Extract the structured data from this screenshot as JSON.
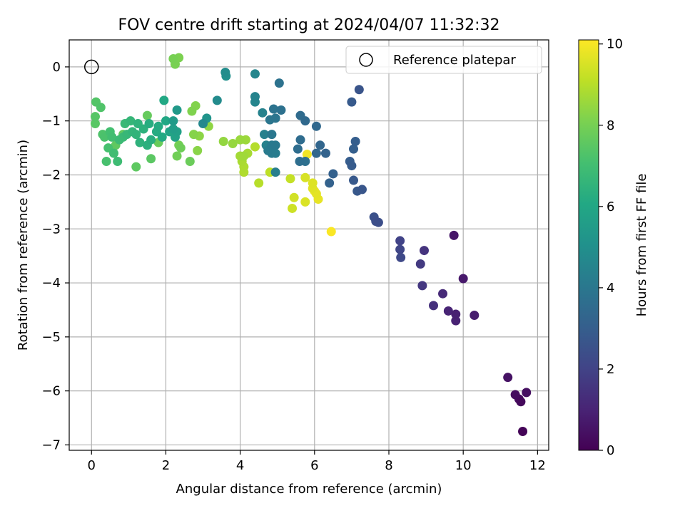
{
  "chart_data": {
    "type": "scatter",
    "title": "FOV centre drift starting at 2024/04/07 11:32:32",
    "xlabel": "Angular distance from reference (arcmin)",
    "ylabel": "Rotation from reference (arcmin)",
    "xlim": [
      -0.6,
      12.3
    ],
    "ylim": [
      -7.1,
      0.5
    ],
    "xticks": [
      0,
      2,
      4,
      6,
      8,
      10,
      12
    ],
    "yticks": [
      0,
      -1,
      -2,
      -3,
      -4,
      -5,
      -6,
      -7
    ],
    "grid": true,
    "legend": {
      "label": "Reference platepar",
      "location": "top-right"
    },
    "reference_point": {
      "x": 0,
      "y": 0
    },
    "colorbar": {
      "label": "Hours from first FF file",
      "range": [
        0,
        10.1
      ],
      "ticks": [
        0,
        2,
        4,
        6,
        8,
        10
      ],
      "colormap": "viridis"
    },
    "points": [
      {
        "x": 11.6,
        "y": -6.75,
        "h": 0.1
      },
      {
        "x": 11.55,
        "y": -6.2,
        "h": 0.2
      },
      {
        "x": 11.5,
        "y": -6.15,
        "h": 0.3
      },
      {
        "x": 11.4,
        "y": -6.07,
        "h": 0.35
      },
      {
        "x": 11.7,
        "y": -6.03,
        "h": 0.4
      },
      {
        "x": 11.2,
        "y": -5.75,
        "h": 0.5
      },
      {
        "x": 10.3,
        "y": -4.6,
        "h": 0.8
      },
      {
        "x": 9.8,
        "y": -4.58,
        "h": 0.9
      },
      {
        "x": 9.6,
        "y": -4.52,
        "h": 1.0
      },
      {
        "x": 9.8,
        "y": -4.7,
        "h": 0.95
      },
      {
        "x": 10.0,
        "y": -3.92,
        "h": 0.7
      },
      {
        "x": 9.75,
        "y": -3.12,
        "h": 0.6
      },
      {
        "x": 9.45,
        "y": -4.2,
        "h": 1.2
      },
      {
        "x": 9.2,
        "y": -4.42,
        "h": 1.4
      },
      {
        "x": 8.9,
        "y": -4.05,
        "h": 1.6
      },
      {
        "x": 8.95,
        "y": -3.4,
        "h": 1.5
      },
      {
        "x": 8.85,
        "y": -3.65,
        "h": 1.7
      },
      {
        "x": 8.3,
        "y": -3.22,
        "h": 2.0
      },
      {
        "x": 8.3,
        "y": -3.38,
        "h": 2.1
      },
      {
        "x": 8.32,
        "y": -3.53,
        "h": 2.2
      },
      {
        "x": 7.72,
        "y": -2.88,
        "h": 2.4
      },
      {
        "x": 7.6,
        "y": -2.78,
        "h": 2.5
      },
      {
        "x": 7.65,
        "y": -2.86,
        "h": 2.45
      },
      {
        "x": 7.28,
        "y": -2.27,
        "h": 2.7
      },
      {
        "x": 7.15,
        "y": -2.3,
        "h": 2.75
      },
      {
        "x": 7.05,
        "y": -2.1,
        "h": 2.8
      },
      {
        "x": 7.0,
        "y": -1.83,
        "h": 2.9
      },
      {
        "x": 6.95,
        "y": -1.75,
        "h": 2.95
      },
      {
        "x": 7.1,
        "y": -1.38,
        "h": 3.0
      },
      {
        "x": 7.05,
        "y": -1.52,
        "h": 3.05
      },
      {
        "x": 7.0,
        "y": -0.65,
        "h": 2.85
      },
      {
        "x": 7.2,
        "y": -0.42,
        "h": 2.6
      },
      {
        "x": 6.5,
        "y": -1.98,
        "h": 3.1
      },
      {
        "x": 6.4,
        "y": -2.15,
        "h": 3.15
      },
      {
        "x": 6.3,
        "y": -1.6,
        "h": 3.2
      },
      {
        "x": 6.15,
        "y": -1.45,
        "h": 3.3
      },
      {
        "x": 6.05,
        "y": -1.6,
        "h": 3.35
      },
      {
        "x": 6.05,
        "y": -1.1,
        "h": 3.4
      },
      {
        "x": 5.75,
        "y": -1.0,
        "h": 3.45
      },
      {
        "x": 5.62,
        "y": -0.9,
        "h": 3.5
      },
      {
        "x": 5.62,
        "y": -1.35,
        "h": 3.55
      },
      {
        "x": 5.55,
        "y": -1.52,
        "h": 3.6
      },
      {
        "x": 5.6,
        "y": -1.75,
        "h": 3.65
      },
      {
        "x": 5.75,
        "y": -1.75,
        "h": 3.7
      },
      {
        "x": 5.1,
        "y": -0.8,
        "h": 3.75
      },
      {
        "x": 5.05,
        "y": -0.3,
        "h": 3.8
      },
      {
        "x": 4.9,
        "y": -0.78,
        "h": 3.85
      },
      {
        "x": 4.95,
        "y": -0.95,
        "h": 3.9
      },
      {
        "x": 4.8,
        "y": -0.98,
        "h": 3.95
      },
      {
        "x": 4.85,
        "y": -1.25,
        "h": 4.0
      },
      {
        "x": 4.95,
        "y": -1.45,
        "h": 4.05
      },
      {
        "x": 4.85,
        "y": -1.45,
        "h": 4.1
      },
      {
        "x": 4.75,
        "y": -1.55,
        "h": 4.15
      },
      {
        "x": 4.85,
        "y": -1.6,
        "h": 4.2
      },
      {
        "x": 4.95,
        "y": -1.6,
        "h": 4.25
      },
      {
        "x": 4.95,
        "y": -1.95,
        "h": 4.3
      },
      {
        "x": 4.65,
        "y": -1.25,
        "h": 4.35
      },
      {
        "x": 4.7,
        "y": -1.45,
        "h": 4.4
      },
      {
        "x": 4.6,
        "y": -0.85,
        "h": 4.45
      },
      {
        "x": 4.4,
        "y": -0.55,
        "h": 4.5
      },
      {
        "x": 4.4,
        "y": -0.65,
        "h": 4.55
      },
      {
        "x": 4.4,
        "y": -0.13,
        "h": 4.6
      },
      {
        "x": 3.6,
        "y": -0.1,
        "h": 4.9
      },
      {
        "x": 3.62,
        "y": -0.17,
        "h": 5.0
      },
      {
        "x": 3.38,
        "y": -0.62,
        "h": 4.8
      },
      {
        "x": 3.0,
        "y": -1.05,
        "h": 4.7
      },
      {
        "x": 3.1,
        "y": -0.95,
        "h": 5.2
      },
      {
        "x": 2.3,
        "y": -0.8,
        "h": 5.4
      },
      {
        "x": 2.2,
        "y": -1.0,
        "h": 5.5
      },
      {
        "x": 2.2,
        "y": -1.15,
        "h": 5.6
      },
      {
        "x": 2.3,
        "y": -1.2,
        "h": 5.7
      },
      {
        "x": 2.25,
        "y": -1.3,
        "h": 5.8
      },
      {
        "x": 2.1,
        "y": -1.2,
        "h": 5.9
      },
      {
        "x": 2.0,
        "y": -1.0,
        "h": 6.0
      },
      {
        "x": 1.95,
        "y": -0.62,
        "h": 6.05
      },
      {
        "x": 1.9,
        "y": -1.3,
        "h": 6.1
      },
      {
        "x": 1.8,
        "y": -1.1,
        "h": 6.15
      },
      {
        "x": 1.75,
        "y": -1.2,
        "h": 6.2
      },
      {
        "x": 1.55,
        "y": -1.05,
        "h": 6.25
      },
      {
        "x": 1.6,
        "y": -1.35,
        "h": 6.3
      },
      {
        "x": 1.5,
        "y": -1.45,
        "h": 6.35
      },
      {
        "x": 1.4,
        "y": -1.15,
        "h": 6.4
      },
      {
        "x": 1.3,
        "y": -1.4,
        "h": 6.45
      },
      {
        "x": 1.25,
        "y": -1.05,
        "h": 6.5
      },
      {
        "x": 1.2,
        "y": -1.25,
        "h": 6.55
      },
      {
        "x": 1.1,
        "y": -1.2,
        "h": 6.6
      },
      {
        "x": 1.05,
        "y": -1.0,
        "h": 6.65
      },
      {
        "x": 0.95,
        "y": -1.25,
        "h": 6.7
      },
      {
        "x": 0.9,
        "y": -1.05,
        "h": 6.75
      },
      {
        "x": 0.85,
        "y": -1.3,
        "h": 6.8
      },
      {
        "x": 0.75,
        "y": -1.35,
        "h": 6.85
      },
      {
        "x": 0.7,
        "y": -1.75,
        "h": 6.9
      },
      {
        "x": 0.6,
        "y": -1.6,
        "h": 6.95
      },
      {
        "x": 0.55,
        "y": -1.3,
        "h": 7.0
      },
      {
        "x": 0.5,
        "y": -1.2,
        "h": 7.05
      },
      {
        "x": 0.45,
        "y": -1.5,
        "h": 7.1
      },
      {
        "x": 0.4,
        "y": -1.75,
        "h": 7.15
      },
      {
        "x": 0.35,
        "y": -1.3,
        "h": 7.2
      },
      {
        "x": 0.3,
        "y": -1.25,
        "h": 7.25
      },
      {
        "x": 0.25,
        "y": -0.75,
        "h": 7.3
      },
      {
        "x": 0.12,
        "y": -0.65,
        "h": 7.35
      },
      {
        "x": 0.1,
        "y": -0.92,
        "h": 7.4
      },
      {
        "x": 0.1,
        "y": -1.05,
        "h": 7.45
      },
      {
        "x": 1.6,
        "y": -1.7,
        "h": 7.5
      },
      {
        "x": 1.2,
        "y": -1.85,
        "h": 7.55
      },
      {
        "x": 0.65,
        "y": -1.45,
        "h": 7.6
      },
      {
        "x": 0.85,
        "y": -1.25,
        "h": 7.65
      },
      {
        "x": 1.5,
        "y": -0.9,
        "h": 7.7
      },
      {
        "x": 1.8,
        "y": -1.4,
        "h": 7.75
      },
      {
        "x": 2.65,
        "y": -1.75,
        "h": 7.8
      },
      {
        "x": 2.4,
        "y": -1.5,
        "h": 7.85
      },
      {
        "x": 2.3,
        "y": -1.65,
        "h": 7.9
      },
      {
        "x": 2.35,
        "y": -1.45,
        "h": 7.95
      },
      {
        "x": 2.2,
        "y": 0.15,
        "h": 8.0
      },
      {
        "x": 2.25,
        "y": 0.05,
        "h": 8.05
      },
      {
        "x": 2.35,
        "y": 0.17,
        "h": 8.1
      },
      {
        "x": 2.7,
        "y": -0.82,
        "h": 8.15
      },
      {
        "x": 2.8,
        "y": -0.72,
        "h": 8.2
      },
      {
        "x": 2.75,
        "y": -1.25,
        "h": 8.25
      },
      {
        "x": 2.85,
        "y": -1.55,
        "h": 8.3
      },
      {
        "x": 2.9,
        "y": -1.28,
        "h": 8.35
      },
      {
        "x": 3.15,
        "y": -1.1,
        "h": 8.4
      },
      {
        "x": 3.55,
        "y": -1.38,
        "h": 8.45
      },
      {
        "x": 3.8,
        "y": -1.42,
        "h": 8.5
      },
      {
        "x": 4.0,
        "y": -1.35,
        "h": 8.55
      },
      {
        "x": 4.15,
        "y": -1.35,
        "h": 8.6
      },
      {
        "x": 4.1,
        "y": -1.65,
        "h": 8.65
      },
      {
        "x": 4.0,
        "y": -1.65,
        "h": 8.7
      },
      {
        "x": 4.2,
        "y": -1.6,
        "h": 8.75
      },
      {
        "x": 4.05,
        "y": -1.75,
        "h": 8.8
      },
      {
        "x": 4.1,
        "y": -1.85,
        "h": 8.85
      },
      {
        "x": 4.1,
        "y": -1.95,
        "h": 8.9
      },
      {
        "x": 4.4,
        "y": -1.48,
        "h": 8.95
      },
      {
        "x": 4.5,
        "y": -2.15,
        "h": 9.0
      },
      {
        "x": 4.8,
        "y": -1.95,
        "h": 9.1
      },
      {
        "x": 5.35,
        "y": -2.07,
        "h": 9.2
      },
      {
        "x": 5.4,
        "y": -2.62,
        "h": 9.35
      },
      {
        "x": 5.45,
        "y": -2.42,
        "h": 9.4
      },
      {
        "x": 5.75,
        "y": -2.05,
        "h": 9.5
      },
      {
        "x": 5.75,
        "y": -2.5,
        "h": 9.55
      },
      {
        "x": 5.95,
        "y": -2.15,
        "h": 9.6
      },
      {
        "x": 5.95,
        "y": -2.25,
        "h": 9.65
      },
      {
        "x": 6.05,
        "y": -2.35,
        "h": 9.7
      },
      {
        "x": 6.1,
        "y": -2.45,
        "h": 9.75
      },
      {
        "x": 6.0,
        "y": -2.3,
        "h": 9.8
      },
      {
        "x": 5.8,
        "y": -1.62,
        "h": 9.9
      },
      {
        "x": 6.45,
        "y": -3.05,
        "h": 10.05
      }
    ]
  }
}
